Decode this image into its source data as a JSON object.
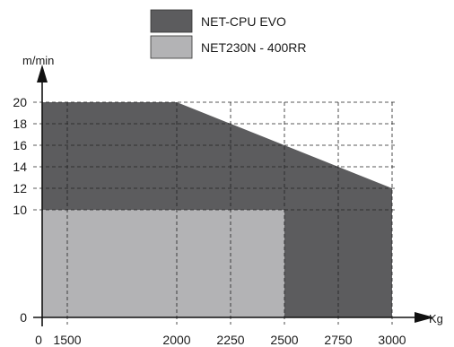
{
  "chart_data": {
    "type": "area",
    "title": "",
    "xlabel": "Kg",
    "ylabel": "m/min",
    "xlim": [
      0,
      3000
    ],
    "ylim": [
      0,
      20
    ],
    "x_ticks": [
      0,
      1500,
      2000,
      2250,
      2500,
      2750,
      3000
    ],
    "y_ticks": [
      0,
      10,
      12,
      14,
      16,
      18,
      20
    ],
    "grid": "dashed, at y 10-20 and x 1500-3000",
    "legend_position": "top-center",
    "series": [
      {
        "name": "NET-CPU EVO",
        "color": "#5c5c5e",
        "x": [
          0,
          2000,
          3000,
          3000
        ],
        "y": [
          20,
          20,
          12,
          0
        ]
      },
      {
        "name": "NET230N - 400RR",
        "color": "#b3b3b5",
        "x": [
          0,
          2500,
          2500
        ],
        "y": [
          10,
          10,
          0
        ]
      }
    ]
  }
}
